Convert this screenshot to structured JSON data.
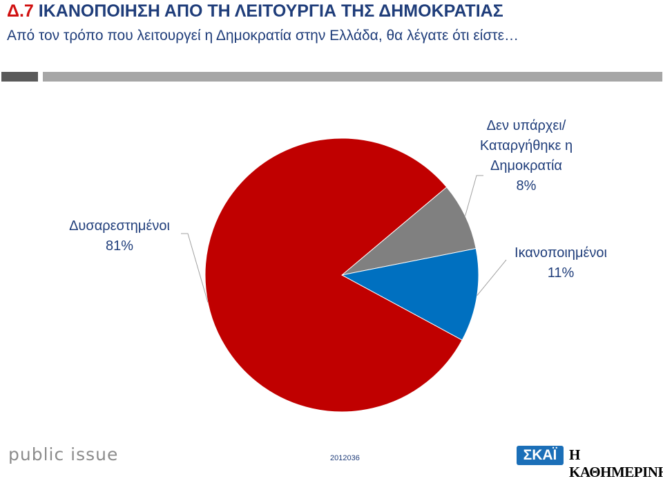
{
  "header": {
    "code": "Δ.7",
    "title": "ΙΚΑΝΟΠΟΙΗΣΗ ΑΠΟ ΤΗ ΛΕΙΤΟΥΡΓΙΑ ΤΗΣ ΔΗΜΟΚΡΑΤΙΑΣ",
    "subtitle": "Από τον τρόπο που λειτουργεί η Δημοκρατία στην Ελλάδα, θα λέγατε ότι είστε…"
  },
  "chart_data": {
    "type": "pie",
    "slices": [
      {
        "label_lines": [
          "Δεν υπάρχει/",
          "Καταργήθηκε η",
          "Δημοκρατία"
        ],
        "value": 8,
        "value_label": "8%",
        "color": "#808080"
      },
      {
        "label_lines": [
          "Ικανοποιημένοι"
        ],
        "value": 11,
        "value_label": "11%",
        "color": "#0070c0"
      },
      {
        "label_lines": [
          "Δυσαρεστημένοι"
        ],
        "value": 81,
        "value_label": "81%",
        "color": "#c00000"
      }
    ]
  },
  "footer": {
    "logo_left": "public issue",
    "code": "2012036",
    "logo_skai": "ΣΚΑΪ",
    "logo_kathimerini": "Η ΚΑΘΗΜΕΡΙΝΗ"
  }
}
